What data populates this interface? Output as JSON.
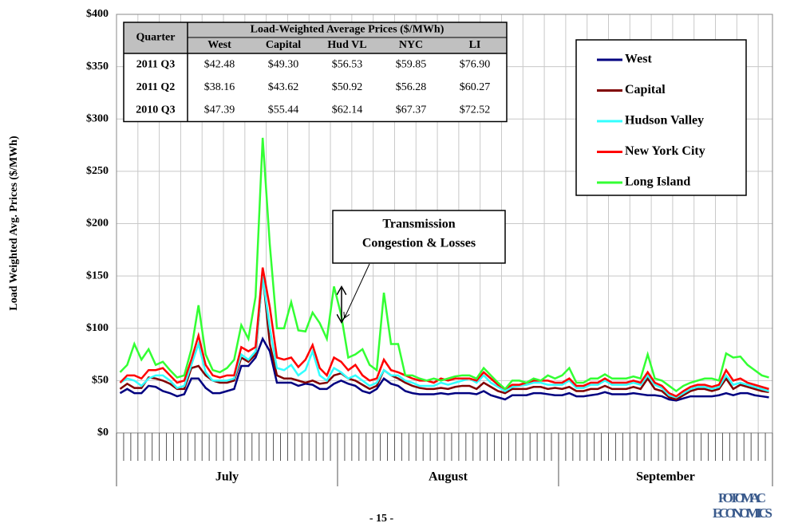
{
  "chart_data": {
    "type": "line",
    "y_label": "Load Weighted Avg. Prices  ($/MWh)",
    "categories": [
      "July",
      null,
      null,
      null,
      null,
      null,
      null,
      null,
      null,
      null,
      null,
      null,
      null,
      null,
      null,
      null,
      null,
      null,
      null,
      null,
      null,
      null,
      null,
      null,
      null,
      null,
      null,
      null,
      null,
      null,
      null,
      "August",
      null,
      null,
      null,
      null,
      null,
      null,
      null,
      null,
      null,
      null,
      null,
      null,
      null,
      null,
      null,
      null,
      null,
      null,
      null,
      null,
      null,
      null,
      null,
      null,
      null,
      null,
      null,
      null,
      null,
      null,
      "September",
      null,
      null,
      null,
      null,
      null,
      null,
      null,
      null,
      null,
      null,
      null,
      null,
      null,
      null,
      null,
      null,
      null,
      null,
      null,
      null,
      null,
      null,
      null,
      null,
      null,
      null,
      null,
      null,
      null
    ],
    "ylim": [
      0,
      400
    ],
    "yticks": [
      {
        "value": 0,
        "label": "$0"
      },
      {
        "value": 50,
        "label": "$50"
      },
      {
        "value": 100,
        "label": "$100"
      },
      {
        "value": 150,
        "label": "$150"
      },
      {
        "value": 200,
        "label": "$200"
      },
      {
        "value": 250,
        "label": "$250"
      },
      {
        "value": 300,
        "label": "$300"
      },
      {
        "value": 350,
        "label": "$350"
      },
      {
        "value": 400,
        "label": "$400"
      }
    ],
    "grid": true,
    "legend": "upper-right",
    "series": [
      {
        "name": "West",
        "color": "#000080",
        "values": [
          38,
          42,
          38,
          38,
          45,
          44,
          40,
          38,
          35,
          37,
          52,
          52,
          43,
          38,
          38,
          40,
          42,
          64,
          64,
          72,
          90,
          78,
          48,
          48,
          48,
          45,
          47,
          46,
          42,
          42,
          47,
          50,
          47,
          45,
          40,
          38,
          42,
          52,
          47,
          45,
          40,
          38,
          37,
          37,
          37,
          38,
          37,
          38,
          38,
          38,
          37,
          40,
          36,
          34,
          32,
          36,
          36,
          36,
          38,
          38,
          37,
          36,
          36,
          38,
          35,
          35,
          36,
          37,
          39,
          37,
          37,
          37,
          38,
          37,
          36,
          36,
          35,
          32,
          31,
          33,
          35,
          35,
          35,
          35,
          36,
          38,
          36,
          38,
          38,
          36,
          35,
          34
        ]
      },
      {
        "name": "Capital",
        "color": "#800000",
        "values": [
          42,
          47,
          43,
          43,
          53,
          52,
          50,
          47,
          42,
          42,
          62,
          64,
          55,
          50,
          48,
          48,
          50,
          72,
          68,
          75,
          152,
          85,
          55,
          52,
          52,
          50,
          48,
          50,
          47,
          48,
          55,
          57,
          52,
          50,
          46,
          42,
          45,
          60,
          55,
          52,
          48,
          45,
          43,
          42,
          42,
          43,
          42,
          44,
          45,
          45,
          42,
          48,
          44,
          40,
          38,
          42,
          42,
          42,
          44,
          44,
          42,
          43,
          42,
          44,
          40,
          40,
          42,
          42,
          45,
          42,
          42,
          42,
          44,
          42,
          52,
          42,
          40,
          34,
          32,
          36,
          40,
          42,
          42,
          40,
          42,
          52,
          42,
          46,
          44,
          42,
          40,
          39
        ]
      },
      {
        "name": "Hudson Valley",
        "color": "#33ffff",
        "values": [
          48,
          52,
          50,
          45,
          52,
          55,
          55,
          50,
          43,
          45,
          65,
          85,
          58,
          50,
          50,
          50,
          52,
          75,
          70,
          78,
          150,
          100,
          62,
          60,
          65,
          55,
          60,
          78,
          55,
          50,
          62,
          58,
          52,
          55,
          50,
          45,
          48,
          60,
          55,
          55,
          50,
          48,
          45,
          45,
          45,
          48,
          46,
          48,
          50,
          52,
          48,
          55,
          48,
          44,
          40,
          44,
          45,
          46,
          48,
          48,
          46,
          46,
          46,
          50,
          43,
          43,
          46,
          46,
          50,
          46,
          46,
          46,
          48,
          46,
          55,
          46,
          43,
          36,
          34,
          38,
          42,
          44,
          44,
          42,
          44,
          55,
          46,
          48,
          46,
          44,
          42,
          40
        ]
      },
      {
        "name": "New York City",
        "color": "#ff0000",
        "values": [
          48,
          55,
          55,
          52,
          60,
          60,
          62,
          55,
          48,
          50,
          70,
          93,
          65,
          55,
          53,
          55,
          55,
          82,
          78,
          82,
          158,
          120,
          72,
          70,
          72,
          63,
          70,
          84,
          62,
          55,
          72,
          68,
          60,
          65,
          55,
          50,
          52,
          70,
          60,
          58,
          55,
          52,
          50,
          50,
          48,
          52,
          50,
          52,
          52,
          52,
          50,
          58,
          52,
          46,
          42,
          46,
          46,
          48,
          50,
          50,
          50,
          48,
          48,
          52,
          45,
          45,
          48,
          48,
          52,
          48,
          48,
          48,
          50,
          48,
          58,
          48,
          45,
          38,
          35,
          40,
          44,
          46,
          46,
          44,
          46,
          60,
          50,
          52,
          48,
          46,
          44,
          42
        ]
      },
      {
        "name": "Long Island",
        "color": "#33ff33",
        "values": [
          58,
          65,
          85,
          70,
          80,
          65,
          68,
          60,
          53,
          55,
          80,
          122,
          75,
          60,
          58,
          62,
          70,
          103,
          90,
          130,
          282,
          180,
          100,
          100,
          125,
          98,
          97,
          115,
          105,
          90,
          140,
          113,
          72,
          75,
          80,
          65,
          60,
          134,
          85,
          85,
          55,
          55,
          52,
          50,
          52,
          50,
          52,
          54,
          55,
          55,
          52,
          62,
          55,
          48,
          42,
          50,
          50,
          48,
          52,
          50,
          55,
          52,
          55,
          62,
          48,
          48,
          52,
          52,
          56,
          52,
          52,
          52,
          54,
          52,
          75,
          52,
          50,
          45,
          40,
          45,
          48,
          50,
          52,
          52,
          50,
          76,
          72,
          73,
          65,
          60,
          55,
          53
        ]
      }
    ],
    "annotation": [
      "Transmission",
      "Congestion & Losses"
    ],
    "table": {
      "corner": "Quarter",
      "group_header": "Load-Weighted Average Prices ($/MWh)",
      "columns": [
        "West",
        "Capital",
        "Hud VL",
        "NYC",
        "LI"
      ],
      "rows": [
        [
          "2011 Q3",
          "$42.48",
          "$49.30",
          "$56.53",
          "$59.85",
          "$76.90"
        ],
        [
          "2011 Q2",
          "$38.16",
          "$43.62",
          "$50.92",
          "$56.28",
          "$60.27"
        ],
        [
          "2010 Q3",
          "$47.39",
          "$55.44",
          "$62.14",
          "$67.37",
          "$72.52"
        ]
      ]
    }
  },
  "footer": {
    "page": "- 15 -",
    "logo": [
      "POTOMAC",
      "ECONOMICS"
    ]
  }
}
